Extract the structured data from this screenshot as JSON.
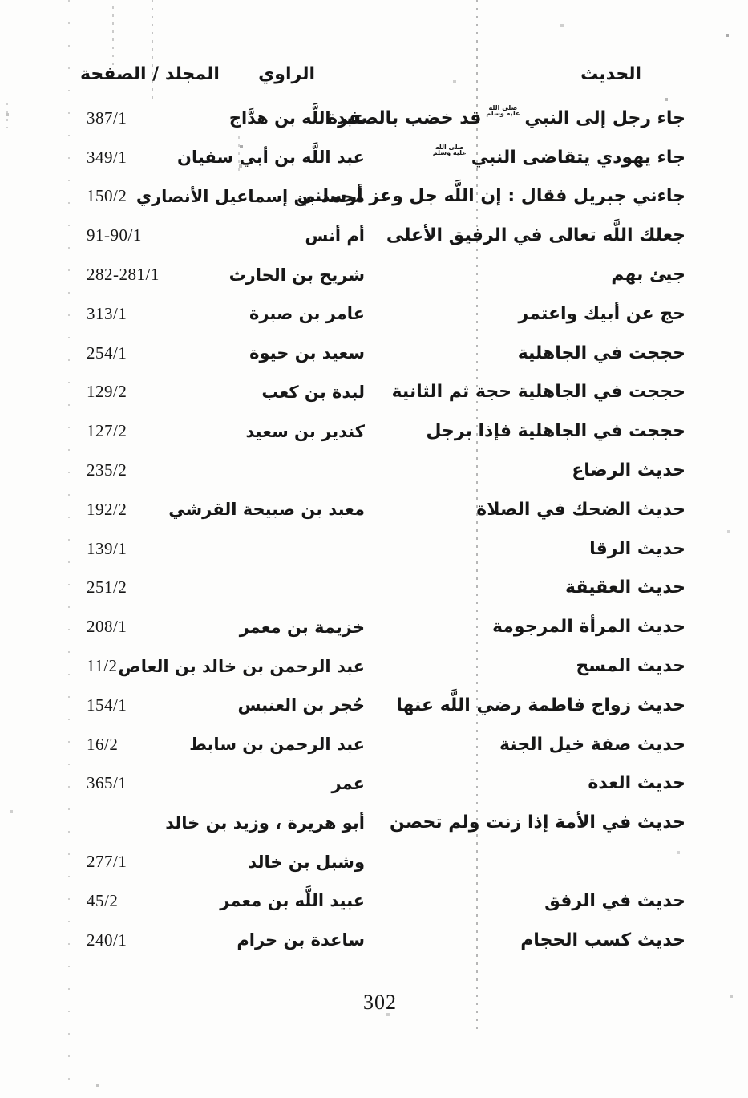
{
  "header": {
    "hadith": "الحديث",
    "narrator": "الراوي",
    "volume_page": "المجلد / الصفحة"
  },
  "prophet_symbol": {
    "unicode": "ﷺ",
    "line1": "صلى الله",
    "line2": "عليه وسلم"
  },
  "rows": [
    {
      "hadith_pre": "جاء رجل إلى النبي",
      "has_symbol": true,
      "hadith_post": "قد خضب بالصفرة",
      "narrator": "عبد اللَّه بن هدَّاج",
      "pages": "387/1"
    },
    {
      "hadith_pre": "جاء يهودي يتقاضى النبي",
      "has_symbol": true,
      "hadith_post": "",
      "narrator": "عبد اللَّه بن أبي سفيان",
      "pages": "349/1"
    },
    {
      "hadith_pre": "جاءني جبريل فقال : إن اللَّه جل وعز أرسلني",
      "has_symbol": false,
      "hadith_post": "",
      "narrator": "محمد بن إسماعيل الأنصاري",
      "pages": "150/2"
    },
    {
      "hadith_pre": "جعلك اللَّه تعالى في الرفيق الأعلى",
      "has_symbol": false,
      "hadith_post": "",
      "narrator": "أم أنس",
      "pages": "91-90/1"
    },
    {
      "hadith_pre": "جيئ بهم",
      "has_symbol": false,
      "hadith_post": "",
      "narrator": "شريح بن الحارث",
      "pages": "282-281/1"
    },
    {
      "hadith_pre": "حج عن أبيك واعتمر",
      "has_symbol": false,
      "hadith_post": "",
      "narrator": "عامر بن صبرة",
      "pages": "313/1"
    },
    {
      "hadith_pre": "حججت في الجاهلية",
      "has_symbol": false,
      "hadith_post": "",
      "narrator": "سعيد بن حيوة",
      "pages": "254/1"
    },
    {
      "hadith_pre": "حججت في الجاهلية حجة ثم الثانية",
      "has_symbol": false,
      "hadith_post": "",
      "narrator": "لبدة بن كعب",
      "pages": "129/2"
    },
    {
      "hadith_pre": "حججت في الجاهلية فإذا برجل",
      "has_symbol": false,
      "hadith_post": "",
      "narrator": "كندير بن سعيد",
      "pages": "127/2"
    },
    {
      "hadith_pre": "حديث الرضاع",
      "has_symbol": false,
      "hadith_post": "",
      "narrator": "",
      "pages": "235/2"
    },
    {
      "hadith_pre": "حديث الضحك في الصلاة",
      "has_symbol": false,
      "hadith_post": "",
      "narrator": "معبد بن صبيحة القرشي",
      "pages": "192/2"
    },
    {
      "hadith_pre": "حديث الرقا",
      "has_symbol": false,
      "hadith_post": "",
      "narrator": "",
      "pages": "139/1"
    },
    {
      "hadith_pre": "حديث العقيقة",
      "has_symbol": false,
      "hadith_post": "",
      "narrator": "",
      "pages": "251/2"
    },
    {
      "hadith_pre": "حديث المرأة المرجومة",
      "has_symbol": false,
      "hadith_post": "",
      "narrator": "خزيمة بن معمر",
      "pages": "208/1"
    },
    {
      "hadith_pre": "حديث المسح",
      "has_symbol": false,
      "hadith_post": "",
      "narrator": "عبد الرحمن بن خالد بن العاص",
      "pages": "11/2"
    },
    {
      "hadith_pre": "حديث زواج فاطمة رضي اللَّه عنها",
      "has_symbol": false,
      "hadith_post": "",
      "narrator": "حُجر بن العنبس",
      "pages": "154/1"
    },
    {
      "hadith_pre": "حديث صفة خيل الجنة",
      "has_symbol": false,
      "hadith_post": "",
      "narrator": "عبد الرحمن بن سابط",
      "pages": "16/2"
    },
    {
      "hadith_pre": "حديث العدة",
      "has_symbol": false,
      "hadith_post": "",
      "narrator": "عمر",
      "pages": "365/1"
    },
    {
      "hadith_pre": "حديث في الأمة إذا زنت ولم تحصن",
      "has_symbol": false,
      "hadith_post": "",
      "narrator": "أبو هريرة ، وزيد بن خالد",
      "pages": ""
    },
    {
      "hadith_pre": "",
      "has_symbol": false,
      "hadith_post": "",
      "narrator": "وشبل بن خالد",
      "pages": "277/1"
    },
    {
      "hadith_pre": "حديث في الرفق",
      "has_symbol": false,
      "hadith_post": "",
      "narrator": "عبيد اللَّه بن معمر",
      "pages": "45/2"
    },
    {
      "hadith_pre": "حديث كسب الحجام",
      "has_symbol": false,
      "hadith_post": "",
      "narrator": "ساعدة بن حرام",
      "pages": "240/1"
    }
  ],
  "page": {
    "number": "302"
  }
}
